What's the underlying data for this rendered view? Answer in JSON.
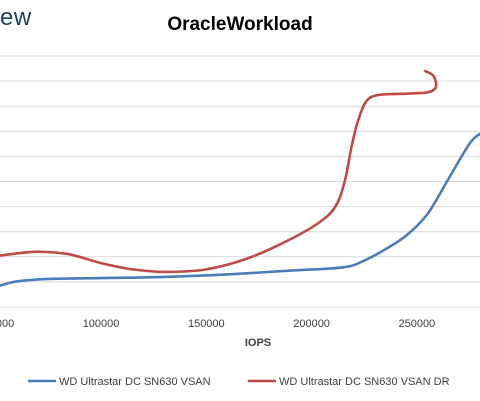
{
  "logo_fragment": "ew",
  "chart_data": {
    "type": "line",
    "title": "OracleWorkload",
    "xlabel": "IOPS",
    "ylabel": "",
    "xlim": [
      52000,
      280000
    ],
    "ylim": [
      0,
      10
    ],
    "grid": true,
    "legend": "bottom",
    "x_ticks": [
      100000,
      150000,
      200000,
      250000
    ],
    "x_tick_labels": [
      "100000",
      "150000",
      "200000",
      "250000"
    ],
    "partial_tick_label": "000",
    "series": [
      {
        "name": "WD Ultrastar DC SN630 VSAN",
        "color": "#4a7ebb",
        "points": [
          [
            52000,
            0.85
          ],
          [
            60000,
            1.02
          ],
          [
            75000,
            1.12
          ],
          [
            100000,
            1.15
          ],
          [
            130000,
            1.2
          ],
          [
            160000,
            1.3
          ],
          [
            190000,
            1.45
          ],
          [
            215000,
            1.58
          ],
          [
            225000,
            1.85
          ],
          [
            235000,
            2.3
          ],
          [
            245000,
            2.85
          ],
          [
            255000,
            3.7
          ],
          [
            265000,
            5.1
          ],
          [
            275000,
            6.5
          ],
          [
            280000,
            6.9
          ]
        ]
      },
      {
        "name": "WD Ultrastar DC SN630 VSAN DR",
        "color": "#be4b48",
        "points": [
          [
            52000,
            2.05
          ],
          [
            65000,
            2.18
          ],
          [
            72000,
            2.2
          ],
          [
            85000,
            2.1
          ],
          [
            100000,
            1.75
          ],
          [
            115000,
            1.5
          ],
          [
            130000,
            1.4
          ],
          [
            150000,
            1.5
          ],
          [
            170000,
            1.95
          ],
          [
            190000,
            2.7
          ],
          [
            205000,
            3.45
          ],
          [
            212000,
            4.1
          ],
          [
            216000,
            5.1
          ],
          [
            219000,
            6.4
          ],
          [
            222000,
            7.4
          ],
          [
            226000,
            8.2
          ],
          [
            232000,
            8.45
          ],
          [
            245000,
            8.5
          ],
          [
            255000,
            8.55
          ],
          [
            259000,
            8.75
          ],
          [
            258000,
            9.2
          ],
          [
            254000,
            9.4
          ]
        ]
      }
    ]
  }
}
